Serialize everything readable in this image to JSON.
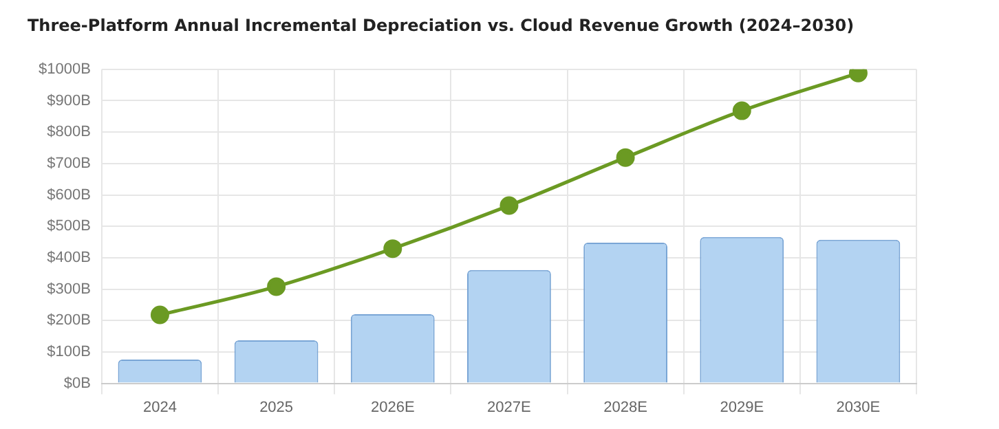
{
  "chart_data": {
    "type": "bar",
    "title": "Three-Platform Annual Incremental Depreciation vs. Cloud Revenue Growth (2024–2030)",
    "categories": [
      "2024",
      "2025",
      "2026E",
      "2027E",
      "2028E",
      "2029E",
      "2030E"
    ],
    "series": [
      {
        "color": "#b3d3f2",
        "values": [
          76,
          137,
          220,
          361,
          448,
          466,
          457
        ]
      },
      {
        "type": "line",
        "color": "#6b9a23",
        "values": [
          218,
          308,
          429,
          566,
          719,
          868,
          988
        ]
      }
    ],
    "ylim": [
      0,
      1000
    ],
    "yticks": [
      {
        "value": 0,
        "label": "$0B"
      },
      {
        "value": 100,
        "label": "$100B"
      },
      {
        "value": 200,
        "label": "$200B"
      },
      {
        "value": 300,
        "label": "$300B"
      },
      {
        "value": 400,
        "label": "$400B"
      },
      {
        "value": 500,
        "label": "$500B"
      },
      {
        "value": 600,
        "label": "$600B"
      },
      {
        "value": 700,
        "label": "$700B"
      },
      {
        "value": 800,
        "label": "$800B"
      },
      {
        "value": 900,
        "label": "$900B"
      },
      {
        "value": 1000,
        "label": "$1000B"
      }
    ],
    "grid": true,
    "marker": "circle"
  }
}
